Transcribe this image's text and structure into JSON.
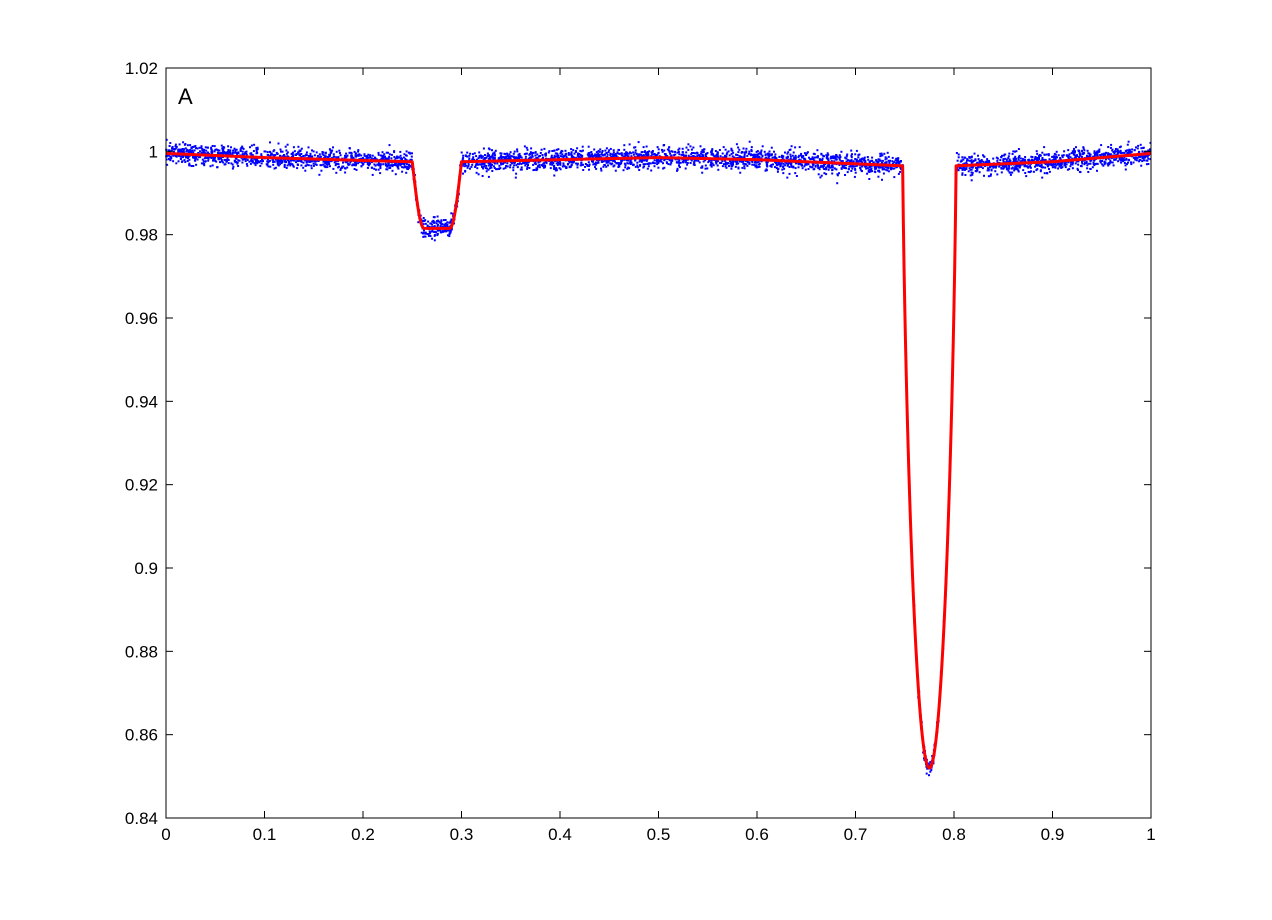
{
  "chart_data": {
    "type": "scatter",
    "title": "",
    "xlabel": "",
    "ylabel": "",
    "panel_label": "A",
    "xlim": [
      0,
      1
    ],
    "ylim": [
      0.84,
      1.02
    ],
    "grid": false,
    "x_ticks": [
      "0",
      "0.1",
      "0.2",
      "0.3",
      "0.4",
      "0.5",
      "0.6",
      "0.7",
      "0.8",
      "0.9",
      "1"
    ],
    "x_tick_values": [
      0,
      0.1,
      0.2,
      0.3,
      0.4,
      0.5,
      0.6,
      0.7,
      0.8,
      0.9,
      1.0
    ],
    "y_ticks": [
      "0.84",
      "0.86",
      "0.88",
      "0.9",
      "0.92",
      "0.94",
      "0.96",
      "0.98",
      "1",
      "1.02"
    ],
    "y_tick_values": [
      0.84,
      0.86,
      0.88,
      0.9,
      0.92,
      0.94,
      0.96,
      0.98,
      1.0,
      1.02
    ],
    "series": [
      {
        "role": "observations",
        "marker": "dot",
        "color": "#0000ff",
        "description_of_shape": "continuum with two eclipses",
        "continuum": [
          [
            0.0,
            0.9995
          ],
          [
            0.1,
            0.9985
          ],
          [
            0.2,
            0.9978
          ],
          [
            0.25,
            0.9975
          ],
          [
            0.3,
            0.9975
          ],
          [
            0.4,
            0.998
          ],
          [
            0.5,
            0.9985
          ],
          [
            0.6,
            0.998
          ],
          [
            0.7,
            0.997
          ],
          [
            0.75,
            0.9965
          ],
          [
            0.8,
            0.9965
          ],
          [
            0.9,
            0.9975
          ],
          [
            1.0,
            0.9995
          ]
        ],
        "noise_sigma": 0.0012,
        "secondary_eclipse": {
          "x": [
            0.25,
            0.262,
            0.288,
            0.3
          ],
          "depth_y": 0.9815
        },
        "primary_eclipse": {
          "center": 0.775,
          "ingress": 0.748,
          "egress": 0.802,
          "min_y": 0.852
        }
      },
      {
        "role": "model",
        "marker": "line",
        "color": "#ff0000",
        "values": [
          [
            0.0,
            0.9995
          ],
          [
            0.1,
            0.9985
          ],
          [
            0.2,
            0.9978
          ],
          [
            0.25,
            0.9975
          ],
          [
            0.262,
            0.9815
          ],
          [
            0.288,
            0.9815
          ],
          [
            0.3,
            0.9975
          ],
          [
            0.4,
            0.998
          ],
          [
            0.5,
            0.9985
          ],
          [
            0.6,
            0.998
          ],
          [
            0.7,
            0.997
          ],
          [
            0.748,
            0.9965
          ],
          [
            0.76,
            0.935
          ],
          [
            0.77,
            0.862
          ],
          [
            0.775,
            0.852
          ],
          [
            0.78,
            0.862
          ],
          [
            0.79,
            0.935
          ],
          [
            0.802,
            0.9965
          ],
          [
            0.9,
            0.9975
          ],
          [
            1.0,
            0.9995
          ]
        ]
      }
    ]
  }
}
